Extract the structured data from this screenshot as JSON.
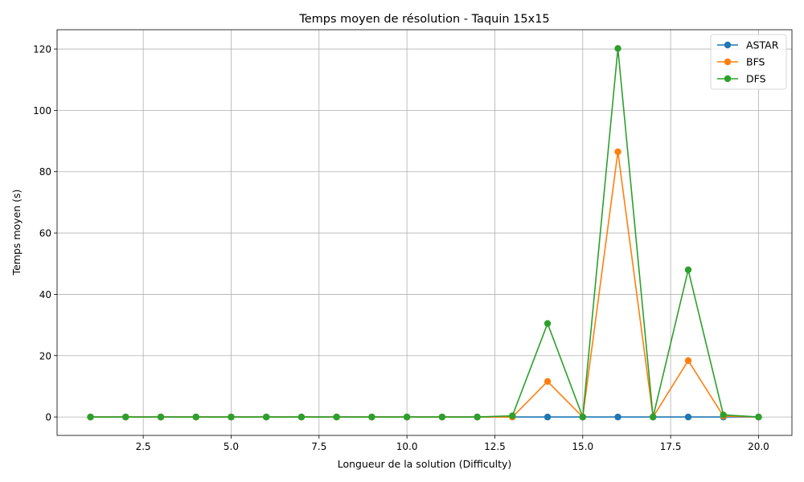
{
  "chart_data": {
    "type": "line",
    "title": "Temps moyen de résolution - Taquin 15x15",
    "xlabel": "Longueur de la solution (Difficulty)",
    "ylabel": "Temps moyen (s)",
    "xlim": [
      0.05,
      20.95
    ],
    "ylim": [
      -6.0,
      126.3
    ],
    "xticks": [
      2.5,
      5.0,
      7.5,
      10.0,
      12.5,
      15.0,
      17.5,
      20.0
    ],
    "xtick_labels": [
      "2.5",
      "5.0",
      "7.5",
      "10.0",
      "12.5",
      "15.0",
      "17.5",
      "20.0"
    ],
    "yticks": [
      0,
      20,
      40,
      60,
      80,
      100,
      120
    ],
    "ytick_labels": [
      "0",
      "20",
      "40",
      "60",
      "80",
      "100",
      "120"
    ],
    "grid": true,
    "legend_position": "top-right",
    "x": [
      1,
      2,
      3,
      4,
      5,
      6,
      7,
      8,
      9,
      10,
      11,
      12,
      13,
      14,
      15,
      16,
      17,
      18,
      19,
      20
    ],
    "series": [
      {
        "name": "ASTAR",
        "color": "#1f77b4",
        "values": [
          0,
          0,
          0,
          0,
          0,
          0,
          0,
          0,
          0,
          0,
          0,
          0,
          0,
          0,
          0,
          0,
          0,
          0,
          0,
          0
        ]
      },
      {
        "name": "BFS",
        "color": "#ff7f0e",
        "values": [
          0,
          0,
          0,
          0,
          0,
          0,
          0,
          0,
          0,
          0,
          0,
          0,
          0,
          11.6,
          0,
          86.5,
          0,
          18.4,
          0.3,
          0
        ]
      },
      {
        "name": "DFS",
        "color": "#2ca02c",
        "values": [
          0,
          0,
          0,
          0,
          0,
          0,
          0,
          0,
          0,
          0,
          0,
          0,
          0.4,
          30.5,
          0,
          120.2,
          0,
          48.0,
          0.7,
          0
        ]
      }
    ]
  }
}
